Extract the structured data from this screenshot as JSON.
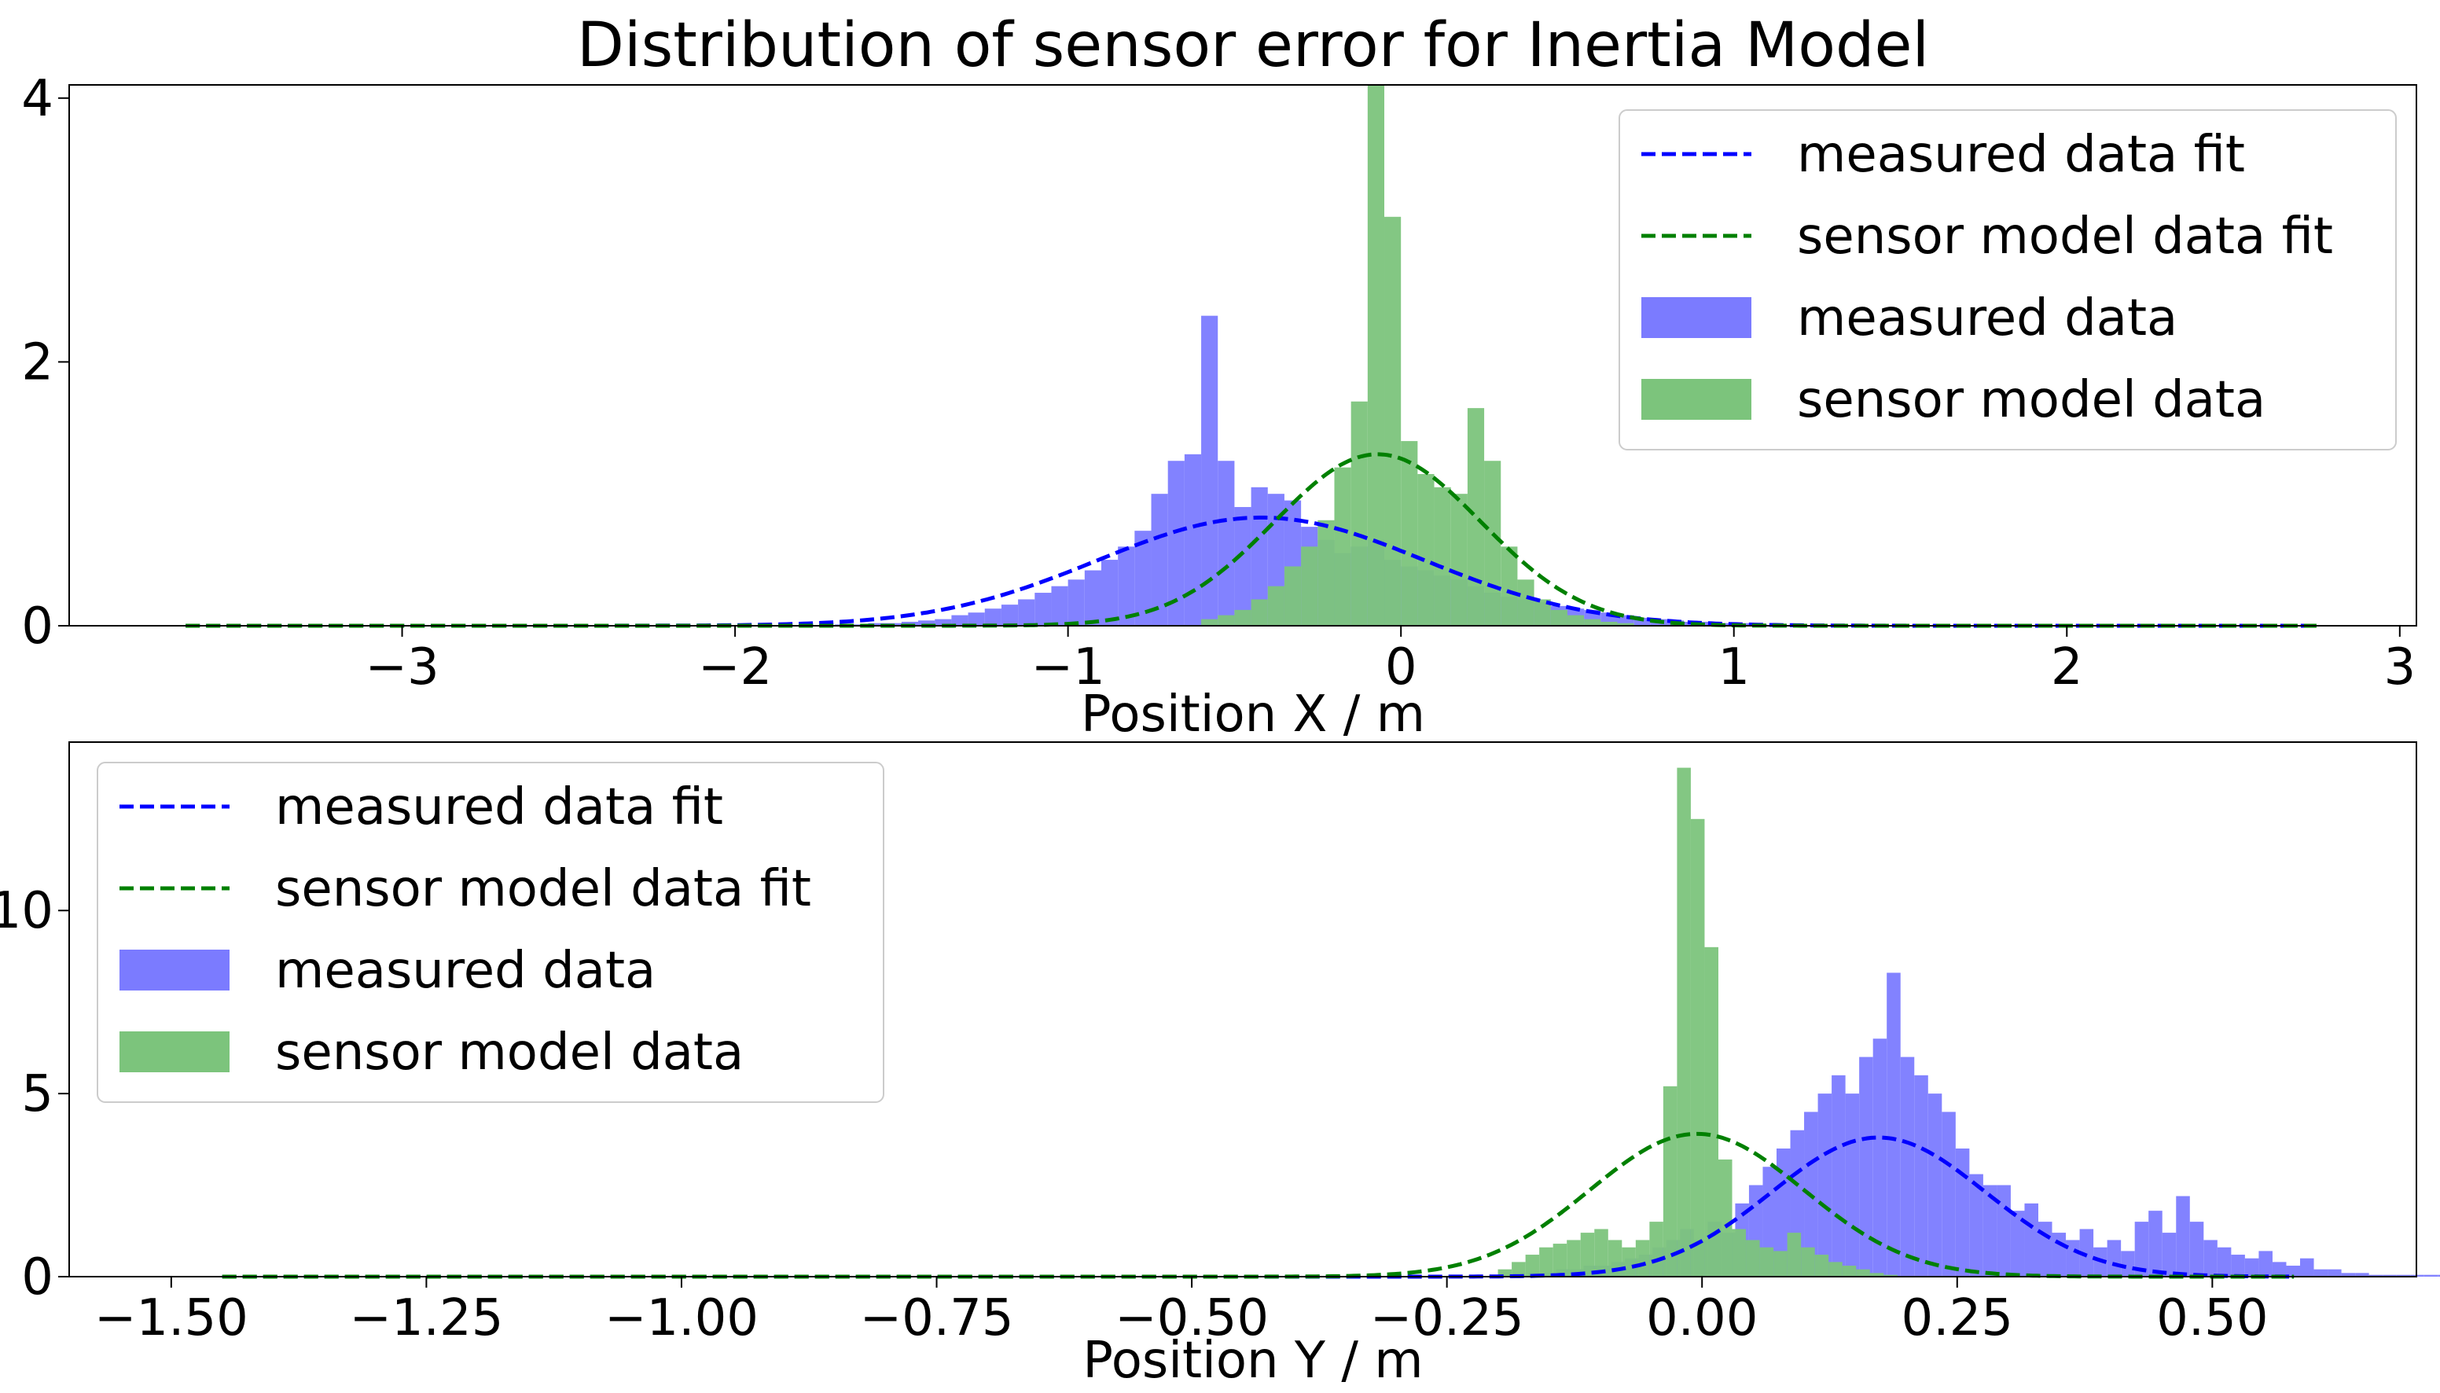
{
  "figure": {
    "title": "Distribution of sensor error for Inertia Model"
  },
  "colors": {
    "measured_data": "#7b7bff",
    "measured_fit": "#0000ff",
    "sensor_model_data": "#7cc47c",
    "sensor_model_fit": "#008000",
    "overlap": "#3d8c8c",
    "axes": "#000000",
    "legend_border": "#cccccc",
    "background": "#ffffff"
  },
  "chart_data": [
    {
      "type": "bar",
      "title": "Distribution of sensor error for Inertia Model",
      "xlabel": "Position X / m",
      "ylabel": "",
      "xlim": [
        -4.0,
        3.05
      ],
      "ylim": [
        0,
        4.1
      ],
      "xticks": [
        -3,
        -2,
        -1,
        0,
        1,
        2,
        3
      ],
      "xtick_labels": [
        "−3",
        "−2",
        "−1",
        "0",
        "1",
        "2",
        "3"
      ],
      "yticks": [
        0,
        2,
        4
      ],
      "ytick_labels": [
        "0",
        "2",
        "4"
      ],
      "grid": false,
      "legend_position": "top-right",
      "legend": [
        "measured data fit",
        "sensor model data fit",
        "measured data",
        "sensor model data"
      ],
      "series": [
        {
          "name": "measured data",
          "kind": "histogram",
          "bin_start": -1.7,
          "bin_width": 0.05,
          "values": [
            0.01,
            0.01,
            0.02,
            0.02,
            0.03,
            0.04,
            0.05,
            0.08,
            0.1,
            0.13,
            0.16,
            0.2,
            0.25,
            0.3,
            0.35,
            0.42,
            0.5,
            0.6,
            0.72,
            1.0,
            1.25,
            1.3,
            2.35,
            1.25,
            0.9,
            1.05,
            1.0,
            0.95,
            0.75,
            0.65,
            0.55,
            0.6,
            0.65,
            0.5,
            0.45,
            0.42,
            0.38,
            0.35,
            0.3,
            0.25,
            0.22,
            0.2,
            0.18,
            0.15,
            0.13,
            0.12,
            0.1,
            0.08,
            0.06,
            0.05,
            0.04,
            0.03,
            0.03,
            0.02,
            0.02,
            0.01
          ]
        },
        {
          "name": "sensor model data",
          "kind": "histogram",
          "bin_start": -0.6,
          "bin_width": 0.05,
          "values": [
            0.05,
            0.08,
            0.12,
            0.2,
            0.3,
            0.45,
            0.6,
            0.8,
            1.2,
            1.7,
            4.1,
            3.1,
            1.4,
            1.15,
            1.05,
            1.0,
            1.65,
            1.25,
            0.6,
            0.35,
            0.2,
            0.12,
            0.08,
            0.05,
            0.03,
            0.02
          ]
        },
        {
          "name": "measured data fit",
          "kind": "gaussian",
          "mean": -0.42,
          "std": 0.49,
          "peak": 0.82,
          "x_range": [
            -3.65,
            2.75
          ]
        },
        {
          "name": "sensor model data fit",
          "kind": "gaussian",
          "mean": -0.07,
          "std": 0.31,
          "peak": 1.3,
          "x_range": [
            -3.65,
            2.75
          ]
        }
      ]
    },
    {
      "type": "bar",
      "title": "",
      "xlabel": "Position Y / m",
      "ylabel": "",
      "xlim": [
        -1.6,
        0.7
      ],
      "ylim": [
        0,
        14.6
      ],
      "xticks": [
        -1.5,
        -1.25,
        -1.0,
        -0.75,
        -0.5,
        -0.25,
        0.0,
        0.25,
        0.5
      ],
      "xtick_labels": [
        "−1.50",
        "−1.25",
        "−1.00",
        "−0.75",
        "−0.50",
        "−0.25",
        "0.00",
        "0.25",
        "0.50"
      ],
      "yticks": [
        0,
        5,
        10
      ],
      "ytick_labels": [
        "0",
        "5",
        "10"
      ],
      "grid": false,
      "legend_position": "top-left",
      "legend": [
        "measured data fit",
        "sensor model data fit",
        "measured data",
        "sensor model data"
      ],
      "series": [
        {
          "name": "measured data",
          "kind": "histogram",
          "bin_start": -0.17,
          "bin_width": 0.0135,
          "values": [
            0.1,
            0.1,
            0.2,
            0.2,
            0.3,
            0.3,
            0.4,
            0.5,
            0.6,
            0.8,
            1.0,
            1.3,
            1.0,
            1.5,
            1.2,
            2.0,
            2.5,
            3.0,
            3.5,
            4.0,
            4.5,
            5.0,
            5.5,
            5.0,
            6.0,
            6.5,
            8.3,
            6.0,
            5.5,
            5.0,
            4.5,
            3.5,
            2.8,
            2.5,
            2.5,
            1.8,
            2.0,
            1.5,
            1.2,
            1.0,
            1.3,
            0.8,
            1.0,
            0.7,
            1.5,
            1.8,
            1.2,
            2.2,
            1.5,
            1.0,
            0.8,
            0.6,
            0.5,
            0.7,
            0.4,
            0.3,
            0.5,
            0.2,
            0.2,
            0.1,
            0.1,
            0.05,
            0.05,
            0.05,
            0.05,
            0.05,
            0.05,
            0.05,
            0.05,
            0.05
          ]
        },
        {
          "name": "sensor model data",
          "kind": "histogram",
          "bin_start": -0.2,
          "bin_width": 0.0135,
          "values": [
            0.2,
            0.4,
            0.6,
            0.8,
            0.9,
            1.0,
            1.2,
            1.3,
            1.0,
            0.8,
            1.0,
            1.5,
            5.2,
            13.9,
            12.5,
            9.0,
            3.2,
            1.3,
            1.0,
            0.8,
            0.7,
            1.2,
            0.8,
            0.6,
            0.4,
            0.3,
            0.2,
            0.1,
            0.05
          ]
        },
        {
          "name": "measured data fit",
          "kind": "gaussian",
          "mean": 0.173,
          "std": 0.105,
          "peak": 3.8,
          "x_range": [
            -1.45,
            0.58
          ]
        },
        {
          "name": "sensor model data fit",
          "kind": "gaussian",
          "mean": -0.005,
          "std": 0.105,
          "peak": 3.9,
          "x_range": [
            -1.45,
            0.58
          ]
        }
      ]
    }
  ]
}
